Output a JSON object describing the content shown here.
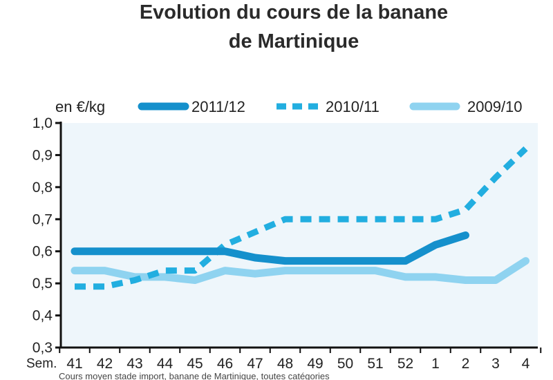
{
  "chart_data": {
    "type": "line",
    "title_line1": "Evolution du cours de la banane",
    "title_line2": "de Martinique",
    "unit_label": "en €/kg",
    "x_prefix": "Sem.",
    "categories": [
      "41",
      "42",
      "43",
      "44",
      "45",
      "46",
      "47",
      "48",
      "49",
      "50",
      "51",
      "52",
      "1",
      "2",
      "3",
      "4"
    ],
    "ylim": [
      0.3,
      1.0
    ],
    "yticks": [
      "1,0",
      "0,9",
      "0,8",
      "0,7",
      "0,6",
      "0,5",
      "0,4",
      "0,3"
    ],
    "grid": false,
    "legend_position": "top",
    "series": [
      {
        "name": "2011/12",
        "style": "solid-thick",
        "color": "#1590cc",
        "values": [
          0.6,
          0.6,
          0.6,
          0.6,
          0.6,
          0.6,
          0.58,
          0.57,
          0.57,
          0.57,
          0.57,
          0.57,
          0.62,
          0.65,
          null,
          null
        ]
      },
      {
        "name": "2010/11",
        "style": "dashed",
        "color": "#22aee0",
        "values": [
          0.49,
          0.49,
          0.51,
          0.54,
          0.54,
          0.62,
          0.66,
          0.7,
          0.7,
          0.7,
          0.7,
          0.7,
          0.7,
          0.73,
          0.83,
          0.92
        ]
      },
      {
        "name": "2009/10",
        "style": "solid-light",
        "color": "#8fd3f0",
        "values": [
          0.54,
          0.54,
          0.52,
          0.52,
          0.51,
          0.54,
          0.53,
          0.54,
          0.54,
          0.54,
          0.54,
          0.52,
          0.52,
          0.51,
          0.51,
          0.57
        ]
      }
    ],
    "footnote": "Cours moyen stade import, banane de Martinique, toutes catégories"
  }
}
